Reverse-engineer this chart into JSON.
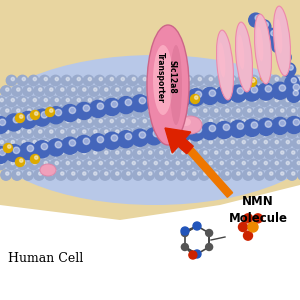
{
  "bg_top_color": "#e8d5a0",
  "bg_bottom_color": "#ffffff",
  "membrane_blue_color": "#4466bb",
  "membrane_light_blue": "#99aacc",
  "membrane_tail_color": "#dd9999",
  "gold_color": "#ddaa00",
  "pink_color": "#ee88aa",
  "light_pink": "#ffbbcc",
  "dark_pink": "#cc6688",
  "transporter_text": "Slc12a8\nTransporter",
  "label_human_cell": "Human Cell",
  "label_nmn": "NMN\nMolecule",
  "arrow_color_red": "#dd2200",
  "arrow_color_orange": "#ee7700",
  "text_color": "#111111",
  "white": "#ffffff"
}
